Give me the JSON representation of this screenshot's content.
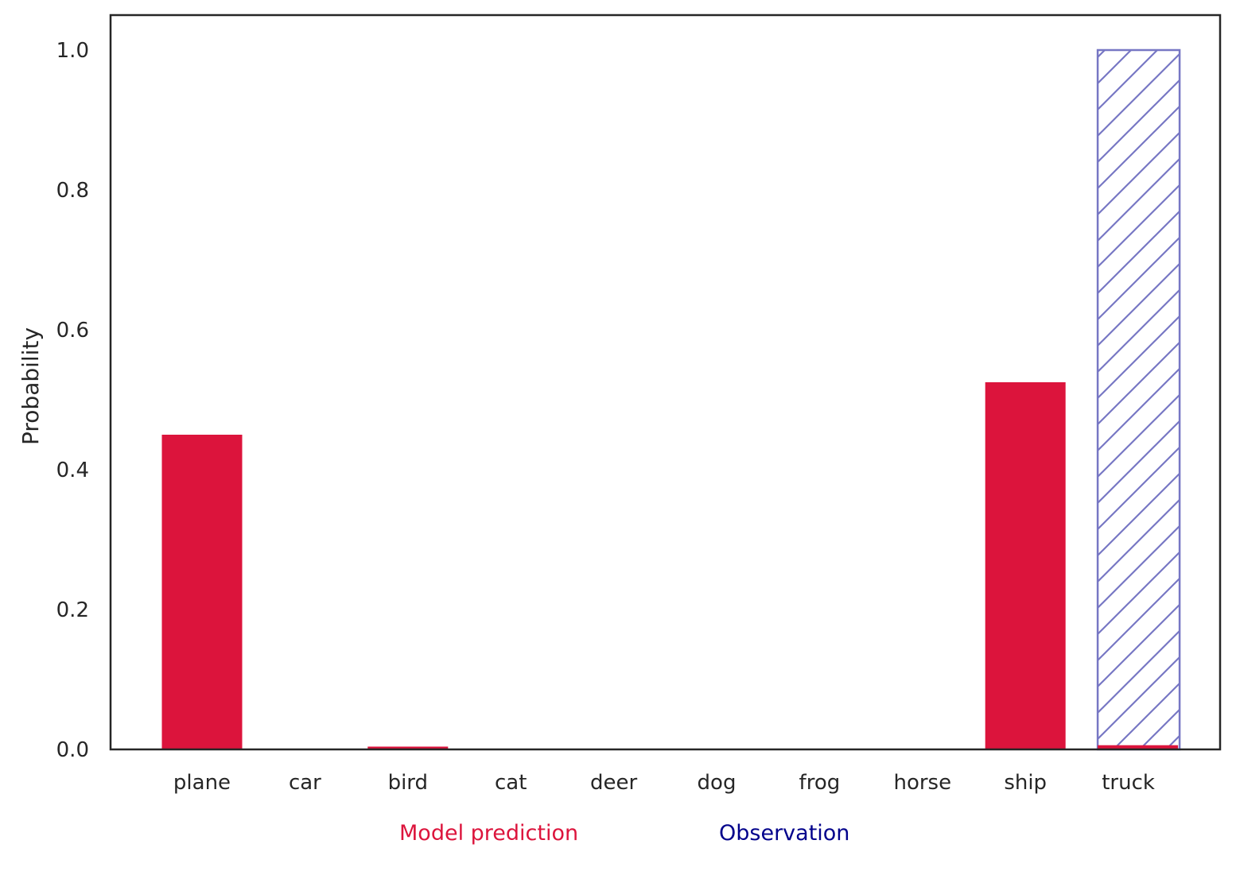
{
  "chart_data": {
    "type": "bar",
    "categories": [
      "plane",
      "car",
      "bird",
      "cat",
      "deer",
      "dog",
      "frog",
      "horse",
      "ship",
      "truck"
    ],
    "series": [
      {
        "name": "Model prediction",
        "color": "#dc143c",
        "style": "solid",
        "values": [
          0.45,
          0.0,
          0.004,
          0.0,
          0.0,
          0.0,
          0.0,
          0.0,
          0.525,
          0.006
        ]
      },
      {
        "name": "Observation",
        "color": "#00008b",
        "style": "hatched",
        "values": [
          0,
          0,
          0,
          0,
          0,
          0,
          0,
          0,
          0,
          1.0
        ]
      }
    ],
    "xlabel": "",
    "ylabel": "Probability",
    "ylim": [
      0.0,
      1.05
    ],
    "yticks": [
      "0.0",
      "0.2",
      "0.4",
      "0.6",
      "0.8",
      "1.0"
    ],
    "grid": false,
    "legend_position": "bottom"
  }
}
